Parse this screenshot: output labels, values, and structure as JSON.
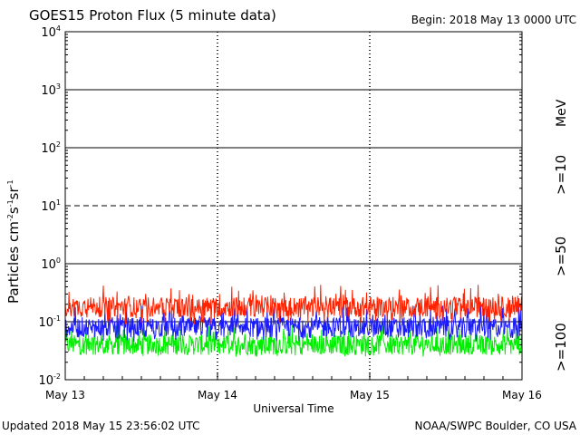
{
  "chart_data": {
    "type": "line",
    "title": "GOES15 Proton Flux (5 minute data)",
    "begin": "Begin: 2018 May 13 0000 UTC",
    "xlabel": "Universal Time",
    "ylabel": "Particles cm",
    "ylabel_sup1": "-2",
    "ylabel_mid1": "s",
    "ylabel_sup2": "-1",
    "ylabel_mid2": "sr",
    "ylabel_sup3": "-1",
    "unit_label": "MeV",
    "y_scale": "log",
    "ylim": [
      0.01,
      10000
    ],
    "xlim_days": [
      0,
      3
    ],
    "x_ticks": [
      {
        "day": 0,
        "label": "May 13"
      },
      {
        "day": 1,
        "label": "May 14"
      },
      {
        "day": 2,
        "label": "May 15"
      },
      {
        "day": 3,
        "label": "May 16"
      }
    ],
    "y_ticks": [
      {
        "value": 10000,
        "base": "10",
        "exp": "4"
      },
      {
        "value": 1000,
        "base": "10",
        "exp": "3"
      },
      {
        "value": 100,
        "base": "10",
        "exp": "2"
      },
      {
        "value": 10,
        "base": "10",
        "exp": "1"
      },
      {
        "value": 1,
        "base": "10",
        "exp": "0"
      },
      {
        "value": 0.1,
        "base": "10",
        "exp": "-1"
      },
      {
        "value": 0.01,
        "base": "10",
        "exp": "-2"
      }
    ],
    "threshold_lines": [
      {
        "value": 1000,
        "style": "solid"
      },
      {
        "value": 100,
        "style": "solid"
      },
      {
        "value": 10,
        "style": "dashed"
      },
      {
        "value": 1,
        "style": "solid"
      },
      {
        "value": 0.1,
        "style": "solid"
      }
    ],
    "series": [
      {
        "name": ">=10",
        "color": "#ff2200",
        "typical": 0.18,
        "low": 0.09,
        "high": 0.45
      },
      {
        "name": ">=50",
        "color": "#1a1aff",
        "typical": 0.08,
        "low": 0.045,
        "high": 0.2
      },
      {
        "name": ">=100",
        "color": "#00ee00",
        "typical": 0.04,
        "low": 0.025,
        "high": 0.09
      }
    ]
  },
  "footer": {
    "updated": "Updated 2018 May 15 23:56:02 UTC",
    "source": "NOAA/SWPC Boulder, CO USA"
  },
  "colors": {
    "ten": "#ff2200",
    "fifty": "#1a1aff",
    "hundred": "#00ee00"
  }
}
